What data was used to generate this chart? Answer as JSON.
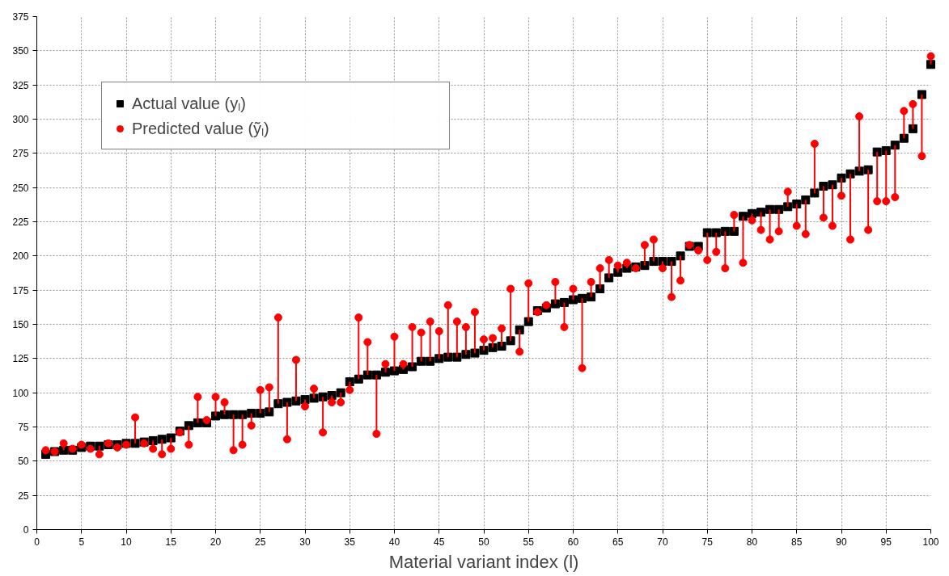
{
  "chart_data": {
    "type": "scatter",
    "xlabel": "Material variant index (l)",
    "x": [
      1,
      2,
      3,
      4,
      5,
      6,
      7,
      8,
      9,
      10,
      11,
      12,
      13,
      14,
      15,
      16,
      17,
      18,
      19,
      20,
      21,
      22,
      23,
      24,
      25,
      26,
      27,
      28,
      29,
      30,
      31,
      32,
      33,
      34,
      35,
      36,
      37,
      38,
      39,
      40,
      41,
      42,
      43,
      44,
      45,
      46,
      47,
      48,
      49,
      50,
      51,
      52,
      53,
      54,
      55,
      56,
      57,
      58,
      59,
      60,
      61,
      62,
      63,
      64,
      65,
      66,
      67,
      68,
      69,
      70,
      71,
      72,
      73,
      74,
      75,
      76,
      77,
      78,
      79,
      80,
      81,
      82,
      83,
      84,
      85,
      86,
      87,
      88,
      89,
      90,
      91,
      92,
      93,
      94,
      95,
      96,
      97,
      98,
      99,
      100
    ],
    "series": [
      {
        "name": "Actual value (yₗ)",
        "color": "#000000",
        "marker": "square",
        "values": [
          55,
          57,
          58,
          58,
          60,
          61,
          61,
          62,
          62,
          63,
          63,
          64,
          65,
          66,
          67,
          72,
          76,
          78,
          78,
          83,
          84,
          84,
          84,
          85,
          85,
          86,
          92,
          93,
          94,
          95,
          96,
          97,
          98,
          100,
          108,
          110,
          113,
          113,
          115,
          116,
          117,
          119,
          123,
          123,
          125,
          126,
          126,
          128,
          129,
          131,
          133,
          134,
          138,
          146,
          152,
          160,
          162,
          165,
          166,
          168,
          169,
          170,
          176,
          184,
          188,
          191,
          192,
          193,
          196,
          196,
          196,
          200,
          207,
          207,
          217,
          217,
          218,
          218,
          229,
          231,
          232,
          234,
          234,
          236,
          238,
          241,
          246,
          251,
          252,
          257,
          260,
          262,
          263,
          276,
          277,
          281,
          286,
          293,
          318,
          340
        ]
      },
      {
        "name": "Predicted value (ỹₗ)",
        "color": "#ff0000",
        "marker": "circle",
        "values": [
          58,
          57,
          63,
          59,
          62,
          59,
          55,
          63,
          60,
          62,
          82,
          63,
          59,
          55,
          59,
          71,
          62,
          97,
          80,
          97,
          93,
          58,
          62,
          76,
          102,
          104,
          155,
          66,
          124,
          90,
          103,
          71,
          93,
          93,
          102,
          155,
          137,
          70,
          121,
          141,
          121,
          148,
          144,
          152,
          145,
          164,
          152,
          148,
          159,
          139,
          140,
          147,
          176,
          130,
          180,
          159,
          164,
          181,
          148,
          176,
          118,
          181,
          191,
          197,
          193,
          195,
          191,
          208,
          212,
          191,
          170,
          182,
          208,
          204,
          197,
          203,
          191,
          230,
          195,
          226,
          219,
          212,
          218,
          247,
          222,
          216,
          282,
          228,
          222,
          244,
          212,
          302,
          219,
          240,
          240,
          243,
          306,
          311,
          273,
          346
        ],
        "errors": [
          [
            55,
            58
          ],
          [
            57,
            57
          ],
          [
            58,
            63
          ],
          [
            58,
            59
          ],
          [
            60,
            62
          ],
          [
            59,
            61
          ],
          [
            55,
            61
          ],
          [
            62,
            63
          ],
          [
            60,
            62
          ],
          [
            62,
            63
          ],
          [
            63,
            82
          ],
          [
            63,
            64
          ],
          [
            59,
            65
          ],
          [
            55,
            66
          ],
          [
            59,
            67
          ],
          [
            71,
            72
          ],
          [
            62,
            76
          ],
          [
            78,
            97
          ],
          [
            78,
            80
          ],
          [
            83,
            97
          ],
          [
            84,
            93
          ],
          [
            58,
            84
          ],
          [
            62,
            84
          ],
          [
            76,
            85
          ],
          [
            85,
            102
          ],
          [
            86,
            104
          ],
          [
            92,
            155
          ],
          [
            66,
            93
          ],
          [
            94,
            124
          ],
          [
            90,
            95
          ],
          [
            96,
            103
          ],
          [
            71,
            97
          ],
          [
            93,
            98
          ],
          [
            93,
            100
          ],
          [
            102,
            108
          ],
          [
            110,
            155
          ],
          [
            113,
            137
          ],
          [
            70,
            113
          ],
          [
            115,
            121
          ],
          [
            116,
            141
          ],
          [
            117,
            121
          ],
          [
            119,
            148
          ],
          [
            123,
            144
          ],
          [
            123,
            152
          ],
          [
            125,
            145
          ],
          [
            126,
            164
          ],
          [
            126,
            152
          ],
          [
            128,
            148
          ],
          [
            129,
            159
          ],
          [
            131,
            139
          ],
          [
            133,
            140
          ],
          [
            134,
            147
          ],
          [
            138,
            176
          ],
          [
            130,
            146
          ],
          [
            152,
            180
          ],
          [
            159,
            160
          ],
          [
            162,
            164
          ],
          [
            165,
            181
          ],
          [
            148,
            166
          ],
          [
            168,
            176
          ],
          [
            118,
            169
          ],
          [
            170,
            181
          ],
          [
            176,
            191
          ],
          [
            184,
            197
          ],
          [
            188,
            193
          ],
          [
            191,
            195
          ],
          [
            191,
            192
          ],
          [
            193,
            208
          ],
          [
            196,
            212
          ],
          [
            191,
            196
          ],
          [
            170,
            196
          ],
          [
            182,
            200
          ],
          [
            207,
            208
          ],
          [
            204,
            207
          ],
          [
            197,
            217
          ],
          [
            203,
            217
          ],
          [
            191,
            218
          ],
          [
            218,
            230
          ],
          [
            195,
            229
          ],
          [
            226,
            231
          ],
          [
            219,
            232
          ],
          [
            212,
            234
          ],
          [
            218,
            234
          ],
          [
            236,
            247
          ],
          [
            222,
            238
          ],
          [
            216,
            241
          ],
          [
            246,
            282
          ],
          [
            228,
            251
          ],
          [
            222,
            252
          ],
          [
            244,
            257
          ],
          [
            212,
            260
          ],
          [
            262,
            302
          ],
          [
            219,
            263
          ],
          [
            240,
            276
          ],
          [
            240,
            277
          ],
          [
            243,
            281
          ],
          [
            286,
            306
          ],
          [
            293,
            311
          ],
          [
            273,
            318
          ],
          [
            340,
            346
          ]
        ]
      }
    ],
    "xlim": [
      0,
      100
    ],
    "xticks": [
      0,
      5,
      10,
      15,
      20,
      25,
      30,
      35,
      40,
      45,
      50,
      55,
      60,
      65,
      70,
      75,
      80,
      85,
      90,
      95,
      100
    ],
    "ylim": [
      0,
      375
    ],
    "yticks": [
      0,
      25,
      50,
      75,
      100,
      125,
      150,
      175,
      200,
      225,
      250,
      275,
      300,
      325,
      350,
      375
    ],
    "grid": true,
    "legend": "top left"
  }
}
